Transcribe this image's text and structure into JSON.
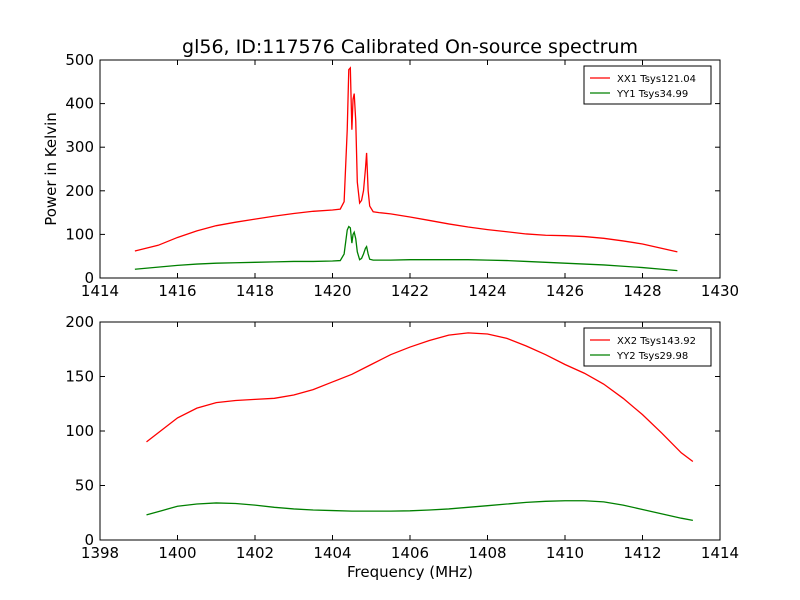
{
  "figure": {
    "title": "gl56, ID:117576 Calibrated On-source spectrum",
    "xlabel": "Frequency (MHz)",
    "ylabel": "Power in Kelvin"
  },
  "colors": {
    "red": "#ff0000",
    "green": "#008000"
  },
  "chart_data": [
    {
      "type": "line",
      "title": "gl56, ID:117576 Calibrated On-source spectrum",
      "xlabel": "",
      "ylabel": "Power in Kelvin",
      "xlim": [
        1414,
        1430
      ],
      "ylim": [
        0,
        500
      ],
      "xticks": [
        1414,
        1416,
        1418,
        1420,
        1422,
        1424,
        1426,
        1428,
        1430
      ],
      "yticks": [
        0,
        100,
        200,
        300,
        400,
        500
      ],
      "grid": false,
      "legend": "top-right",
      "series": [
        {
          "name": "XX1 Tsys121.04",
          "color": "#ff0000",
          "x": [
            1414.9,
            1415.5,
            1416.0,
            1416.5,
            1417.0,
            1417.5,
            1418.0,
            1418.5,
            1419.0,
            1419.5,
            1420.0,
            1420.2,
            1420.3,
            1420.38,
            1420.42,
            1420.46,
            1420.5,
            1420.53,
            1420.56,
            1420.6,
            1420.64,
            1420.7,
            1420.75,
            1420.8,
            1420.85,
            1420.88,
            1420.92,
            1420.96,
            1421.05,
            1421.2,
            1421.5,
            1422.0,
            1422.5,
            1423.0,
            1423.5,
            1424.0,
            1424.5,
            1425.0,
            1425.5,
            1426.0,
            1426.5,
            1427.0,
            1427.5,
            1428.0,
            1428.5,
            1428.9
          ],
          "y": [
            62,
            75,
            93,
            108,
            120,
            128,
            135,
            142,
            148,
            153,
            156,
            158,
            175,
            340,
            478,
            482,
            340,
            410,
            423,
            360,
            220,
            172,
            178,
            200,
            250,
            287,
            200,
            165,
            152,
            150,
            147,
            140,
            132,
            124,
            117,
            111,
            106,
            101,
            98,
            97,
            95,
            91,
            85,
            78,
            68,
            60
          ]
        },
        {
          "name": "YY1 Tsys34.99",
          "color": "#008000",
          "x": [
            1414.9,
            1415.5,
            1416.0,
            1416.5,
            1417.0,
            1417.5,
            1418.0,
            1418.5,
            1419.0,
            1419.5,
            1420.0,
            1420.2,
            1420.3,
            1420.38,
            1420.42,
            1420.46,
            1420.5,
            1420.53,
            1420.56,
            1420.6,
            1420.64,
            1420.7,
            1420.75,
            1420.8,
            1420.85,
            1420.88,
            1420.92,
            1420.96,
            1421.05,
            1421.2,
            1421.5,
            1422.0,
            1422.5,
            1423.0,
            1423.5,
            1424.0,
            1424.5,
            1425.0,
            1425.5,
            1426.0,
            1426.5,
            1427.0,
            1427.5,
            1428.0,
            1428.5,
            1428.9
          ],
          "y": [
            20,
            25,
            29,
            32,
            34,
            35,
            36,
            37,
            38,
            38,
            39,
            40,
            55,
            110,
            118,
            115,
            80,
            100,
            105,
            90,
            60,
            42,
            45,
            55,
            68,
            72,
            55,
            43,
            41,
            41,
            41,
            42,
            42,
            42,
            42,
            41,
            40,
            38,
            36,
            34,
            32,
            30,
            27,
            24,
            20,
            17
          ]
        }
      ]
    },
    {
      "type": "line",
      "title": "",
      "xlabel": "Frequency (MHz)",
      "ylabel": "",
      "xlim": [
        1398,
        1414
      ],
      "ylim": [
        0,
        200
      ],
      "xticks": [
        1398,
        1400,
        1402,
        1404,
        1406,
        1408,
        1410,
        1412,
        1414
      ],
      "yticks": [
        0,
        50,
        100,
        150,
        200
      ],
      "grid": false,
      "legend": "top-right",
      "series": [
        {
          "name": "XX2 Tsys143.92",
          "color": "#ff0000",
          "x": [
            1399.2,
            1399.6,
            1400.0,
            1400.5,
            1401.0,
            1401.5,
            1402.0,
            1402.5,
            1403.0,
            1403.5,
            1404.0,
            1404.5,
            1405.0,
            1405.5,
            1406.0,
            1406.5,
            1407.0,
            1407.5,
            1408.0,
            1408.5,
            1409.0,
            1409.5,
            1410.0,
            1410.5,
            1411.0,
            1411.5,
            1412.0,
            1412.5,
            1413.0,
            1413.3
          ],
          "y": [
            90,
            101,
            112,
            121,
            126,
            128,
            129,
            130,
            133,
            138,
            145,
            152,
            161,
            170,
            177,
            183,
            188,
            190,
            189,
            185,
            178,
            170,
            161,
            153,
            143,
            130,
            115,
            98,
            80,
            72
          ]
        },
        {
          "name": "YY2 Tsys29.98",
          "color": "#008000",
          "x": [
            1399.2,
            1399.6,
            1400.0,
            1400.5,
            1401.0,
            1401.5,
            1402.0,
            1402.5,
            1403.0,
            1403.5,
            1404.0,
            1404.5,
            1405.0,
            1405.5,
            1406.0,
            1406.5,
            1407.0,
            1407.5,
            1408.0,
            1408.5,
            1409.0,
            1409.5,
            1410.0,
            1410.5,
            1411.0,
            1411.5,
            1412.0,
            1412.5,
            1413.0,
            1413.3
          ],
          "y": [
            23,
            27,
            31,
            33,
            34,
            33.5,
            32,
            30,
            28.5,
            27.5,
            27,
            26.5,
            26.5,
            26.5,
            26.8,
            27.5,
            28.5,
            30,
            31.5,
            33,
            34.5,
            35.5,
            36,
            36,
            35,
            32,
            28,
            24,
            20,
            18
          ]
        }
      ]
    }
  ]
}
